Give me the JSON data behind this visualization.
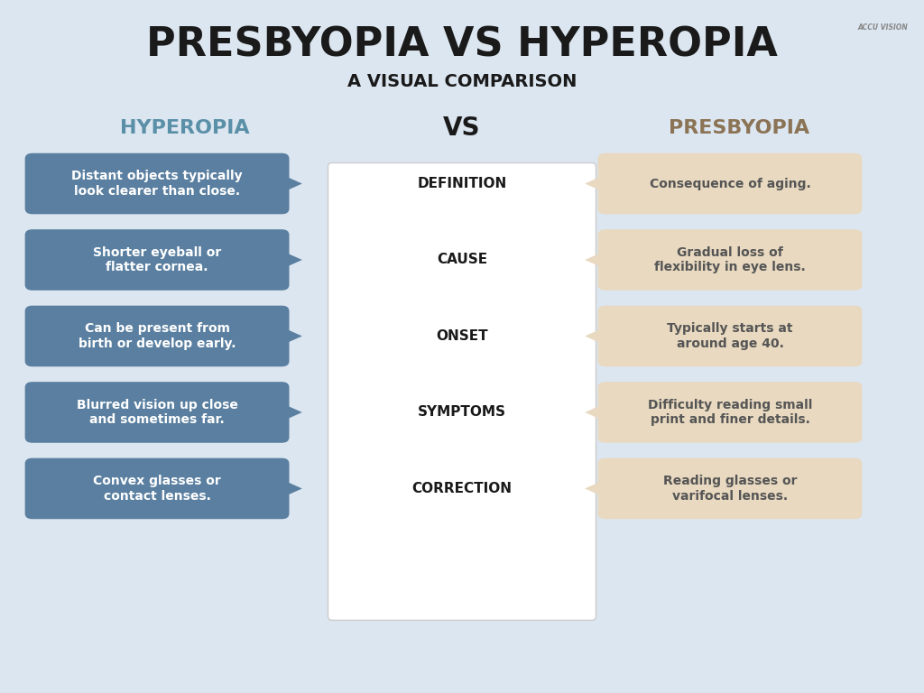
{
  "title": "PRESBYOPIA VS HYPEROPIA",
  "subtitle": "A VISUAL COMPARISON",
  "background_color": "#dce6f0",
  "title_color": "#1a1a1a",
  "subtitle_color": "#1a1a1a",
  "left_header": "HYPEROPIA",
  "right_header": "PRESBYOPIA",
  "center_header": "VS",
  "left_header_color": "#5a8fa8",
  "right_header_color": "#8b7355",
  "center_header_color": "#1a1a1a",
  "left_box_bg": "#5a7fa0",
  "right_box_bg": "#e8d9c0",
  "center_box_bg": "#ffffff",
  "left_text_color": "#ffffff",
  "right_text_color": "#555555",
  "center_text_color": "#1a1a1a",
  "categories": [
    "DEFINITION",
    "CAUSE",
    "ONSET",
    "SYMPTOMS",
    "CORRECTION"
  ],
  "left_texts": [
    "Distant objects typically\nlook clearer than close.",
    "Shorter eyeball or\nflatter cornea.",
    "Can be present from\nbirth or develop early.",
    "Blurred vision up close\nand sometimes far.",
    "Convex glasses or\ncontact lenses."
  ],
  "right_texts": [
    "Consequence of aging.",
    "Gradual loss of\nflexibility in eye lens.",
    "Typically starts at\naround age 40.",
    "Difficulty reading small\nprint and finer details.",
    "Reading glasses or\nvarifocal lenses."
  ]
}
